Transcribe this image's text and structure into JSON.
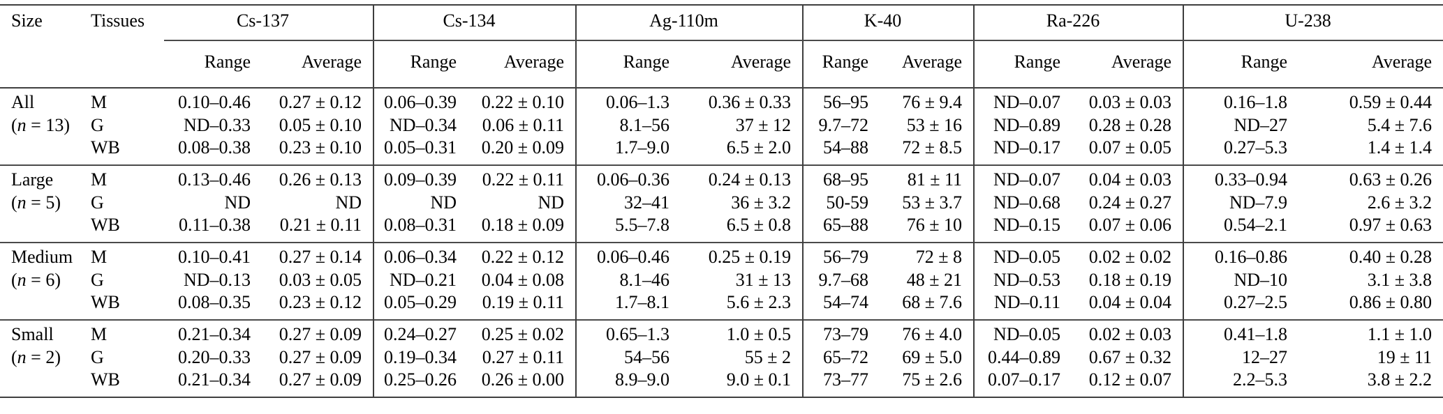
{
  "colors": {
    "text": "#000000",
    "rule": "#3f3f3f"
  },
  "table": {
    "col1_header": "Size",
    "col2_header": "Tissues",
    "isotopes": [
      "Cs-137",
      "Cs-134",
      "Ag-110m",
      "K-40",
      "Ra-226",
      "U-238"
    ],
    "subheaders": {
      "range": "Range",
      "average": "Average"
    },
    "groups": [
      {
        "size": "All",
        "n": "(n = 13)",
        "rows": [
          {
            "tissue": "M",
            "values": [
              [
                "0.10–0.46",
                "0.27 ± 0.12"
              ],
              [
                "0.06–0.39",
                "0.22 ± 0.10"
              ],
              [
                "0.06–1.3",
                "0.36 ± 0.33"
              ],
              [
                "56–95",
                "76 ± 9.4"
              ],
              [
                "ND–0.07",
                "0.03 ± 0.03"
              ],
              [
                "0.16–1.8",
                "0.59 ± 0.44"
              ]
            ]
          },
          {
            "tissue": "G",
            "values": [
              [
                "ND–0.33",
                "0.05 ± 0.10"
              ],
              [
                "ND–0.34",
                "0.06 ± 0.11"
              ],
              [
                "8.1–56",
                "37 ± 12"
              ],
              [
                "9.7–72",
                "53 ± 16"
              ],
              [
                "ND–0.89",
                "0.28 ± 0.28"
              ],
              [
                "ND–27",
                "5.4 ± 7.6"
              ]
            ]
          },
          {
            "tissue": "WB",
            "values": [
              [
                "0.08–0.38",
                "0.23 ± 0.10"
              ],
              [
                "0.05–0.31",
                "0.20 ± 0.09"
              ],
              [
                "1.7–9.0",
                "6.5 ± 2.0"
              ],
              [
                "54–88",
                "72 ± 8.5"
              ],
              [
                "ND–0.17",
                "0.07 ± 0.05"
              ],
              [
                "0.27–5.3",
                "1.4 ± 1.4"
              ]
            ]
          }
        ]
      },
      {
        "size": "Large",
        "n": "(n = 5)",
        "rows": [
          {
            "tissue": "M",
            "values": [
              [
                "0.13–0.46",
                "0.26 ± 0.13"
              ],
              [
                "0.09–0.39",
                "0.22 ± 0.11"
              ],
              [
                "0.06–0.36",
                "0.24 ± 0.13"
              ],
              [
                "68–95",
                "81 ± 11"
              ],
              [
                "ND–0.07",
                "0.04 ± 0.03"
              ],
              [
                "0.33–0.94",
                "0.63 ± 0.26"
              ]
            ]
          },
          {
            "tissue": "G",
            "values": [
              [
                "ND",
                "ND"
              ],
              [
                "ND",
                "ND"
              ],
              [
                "32–41",
                "36 ± 3.2"
              ],
              [
                "50-59",
                "53 ± 3.7"
              ],
              [
                "ND–0.68",
                "0.24 ± 0.27"
              ],
              [
                "ND–7.9",
                "2.6 ± 3.2"
              ]
            ]
          },
          {
            "tissue": "WB",
            "values": [
              [
                "0.11–0.38",
                "0.21 ± 0.11"
              ],
              [
                "0.08–0.31",
                "0.18 ± 0.09"
              ],
              [
                "5.5–7.8",
                "6.5 ± 0.8"
              ],
              [
                "65–88",
                "76 ± 10"
              ],
              [
                "ND–0.15",
                "0.07 ± 0.06"
              ],
              [
                "0.54–2.1",
                "0.97 ± 0.63"
              ]
            ]
          }
        ]
      },
      {
        "size": "Medium",
        "n": "(n = 6)",
        "rows": [
          {
            "tissue": "M",
            "values": [
              [
                "0.10–0.41",
                "0.27 ± 0.14"
              ],
              [
                "0.06–0.34",
                "0.22 ± 0.12"
              ],
              [
                "0.06–0.46",
                "0.25 ± 0.19"
              ],
              [
                "56–79",
                "72 ± 8"
              ],
              [
                "ND–0.05",
                "0.02 ± 0.02"
              ],
              [
                "0.16–0.86",
                "0.40 ± 0.28"
              ]
            ]
          },
          {
            "tissue": "G",
            "values": [
              [
                "ND–0.13",
                "0.03 ± 0.05"
              ],
              [
                "ND–0.21",
                "0.04 ± 0.08"
              ],
              [
                "8.1–46",
                "31 ± 13"
              ],
              [
                "9.7–68",
                "48 ± 21"
              ],
              [
                "ND–0.53",
                "0.18 ± 0.19"
              ],
              [
                "ND–10",
                "3.1 ± 3.8"
              ]
            ]
          },
          {
            "tissue": "WB",
            "values": [
              [
                "0.08–0.35",
                "0.23 ± 0.12"
              ],
              [
                "0.05–0.29",
                "0.19 ± 0.11"
              ],
              [
                "1.7–8.1",
                "5.6 ± 2.3"
              ],
              [
                "54–74",
                "68 ± 7.6"
              ],
              [
                "ND–0.11",
                "0.04 ± 0.04"
              ],
              [
                "0.27–2.5",
                "0.86 ± 0.80"
              ]
            ]
          }
        ]
      },
      {
        "size": "Small",
        "n": "(n = 2)",
        "rows": [
          {
            "tissue": "M",
            "values": [
              [
                "0.21–0.34",
                "0.27 ± 0.09"
              ],
              [
                "0.24–0.27",
                "0.25 ± 0.02"
              ],
              [
                "0.65–1.3",
                "1.0 ± 0.5"
              ],
              [
                "73–79",
                "76 ± 4.0"
              ],
              [
                "ND–0.05",
                "0.02 ± 0.03"
              ],
              [
                "0.41–1.8",
                "1.1 ± 1.0"
              ]
            ]
          },
          {
            "tissue": "G",
            "values": [
              [
                "0.20–0.33",
                "0.27 ± 0.09"
              ],
              [
                "0.19–0.34",
                "0.27 ± 0.11"
              ],
              [
                "54–56",
                "55 ± 2"
              ],
              [
                "65–72",
                "69 ± 5.0"
              ],
              [
                "0.44–0.89",
                "0.67 ± 0.32"
              ],
              [
                "12–27",
                "19 ± 11"
              ]
            ]
          },
          {
            "tissue": "WB",
            "values": [
              [
                "0.21–0.34",
                "0.27 ± 0.09"
              ],
              [
                "0.25–0.26",
                "0.26 ± 0.00"
              ],
              [
                "8.9–9.0",
                "9.0 ± 0.1"
              ],
              [
                "73–77",
                "75 ± 2.6"
              ],
              [
                "0.07–0.17",
                "0.12 ± 0.07"
              ],
              [
                "2.2–5.3",
                "3.8 ± 2.2"
              ]
            ]
          }
        ]
      }
    ]
  }
}
